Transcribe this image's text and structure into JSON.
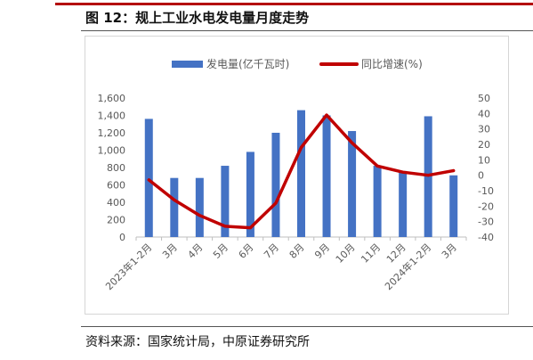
{
  "figure": {
    "title": "图 12：规上工业水电发电量月度走势",
    "source": "资料来源：国家统计局，中原证券研究所"
  },
  "colors": {
    "bar": "#4472c4",
    "line": "#c00000",
    "axis": "#bfbfbf",
    "text": "#595959"
  },
  "chart_data": {
    "type": "bar",
    "categories": [
      "2023年1-2月",
      "3月",
      "4月",
      "5月",
      "6月",
      "7月",
      "8月",
      "9月",
      "10月",
      "11月",
      "12月",
      "2024年1-2月",
      "3月"
    ],
    "series": [
      {
        "name": "发电量(亿千瓦时)",
        "type": "bar",
        "axis": "left",
        "values": [
          1360,
          680,
          680,
          820,
          980,
          1200,
          1460,
          1400,
          1220,
          820,
          760,
          1390,
          710
        ]
      },
      {
        "name": "同比增速(%)",
        "type": "line",
        "axis": "right",
        "values": [
          -3,
          -16,
          -26,
          -33,
          -34,
          -18,
          18,
          39,
          21,
          6,
          2,
          0,
          3
        ]
      }
    ],
    "ylim": [
      0,
      1600
    ],
    "y2lim": [
      -40,
      50
    ],
    "yticks": [
      "0",
      "200",
      "400",
      "600",
      "800",
      "1,000",
      "1,200",
      "1,400",
      "1,600"
    ],
    "y2ticks": [
      "-40",
      "-30",
      "-20",
      "-10",
      "0",
      "10",
      "20",
      "30",
      "40",
      "50"
    ],
    "legend": "top",
    "grid": false
  }
}
